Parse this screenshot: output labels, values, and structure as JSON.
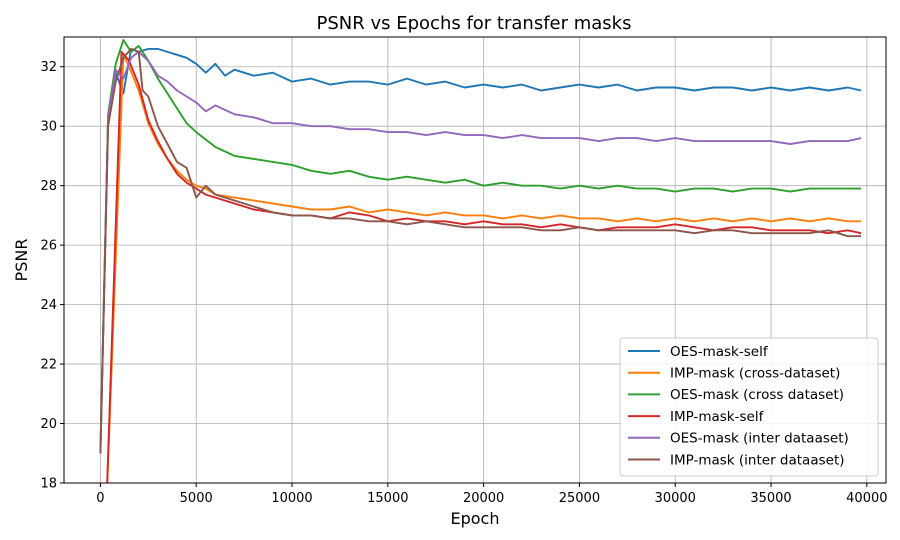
{
  "chart_data": {
    "type": "line",
    "title": "PSNR vs Epochs for transfer masks",
    "xlabel": "Epoch",
    "ylabel": "PSNR",
    "xlim": [
      -1900,
      41000
    ],
    "ylim": [
      18,
      33
    ],
    "xticks": [
      0,
      5000,
      10000,
      15000,
      20000,
      25000,
      30000,
      35000,
      40000
    ],
    "xtick_labels": [
      "0",
      "5000",
      "10000",
      "15000",
      "20000",
      "25000",
      "30000",
      "35000",
      "40000"
    ],
    "yticks": [
      18,
      20,
      22,
      24,
      26,
      28,
      30,
      32
    ],
    "ytick_labels": [
      "18",
      "20",
      "22",
      "24",
      "26",
      "28",
      "30",
      "32"
    ],
    "grid": true,
    "legend_position": "bottom-right",
    "series": [
      {
        "name": "OES-mask-self",
        "color": "#1f77b4",
        "points": [
          [
            0,
            19.1
          ],
          [
            400,
            30.2
          ],
          [
            800,
            31.8
          ],
          [
            1200,
            31.1
          ],
          [
            1600,
            32.6
          ],
          [
            2000,
            32.5
          ],
          [
            2500,
            32.6
          ],
          [
            3000,
            32.6
          ],
          [
            3500,
            32.5
          ],
          [
            4000,
            32.4
          ],
          [
            4500,
            32.3
          ],
          [
            5000,
            32.1
          ],
          [
            5500,
            31.8
          ],
          [
            6000,
            32.1
          ],
          [
            6500,
            31.7
          ],
          [
            7000,
            31.9
          ],
          [
            8000,
            31.7
          ],
          [
            9000,
            31.8
          ],
          [
            10000,
            31.5
          ],
          [
            11000,
            31.6
          ],
          [
            12000,
            31.4
          ],
          [
            13000,
            31.5
          ],
          [
            14000,
            31.5
          ],
          [
            15000,
            31.4
          ],
          [
            16000,
            31.6
          ],
          [
            17000,
            31.4
          ],
          [
            18000,
            31.5
          ],
          [
            19000,
            31.3
          ],
          [
            20000,
            31.4
          ],
          [
            21000,
            31.3
          ],
          [
            22000,
            31.4
          ],
          [
            23000,
            31.2
          ],
          [
            24000,
            31.3
          ],
          [
            25000,
            31.4
          ],
          [
            26000,
            31.3
          ],
          [
            27000,
            31.4
          ],
          [
            28000,
            31.2
          ],
          [
            29000,
            31.3
          ],
          [
            30000,
            31.3
          ],
          [
            31000,
            31.2
          ],
          [
            32000,
            31.3
          ],
          [
            33000,
            31.3
          ],
          [
            34000,
            31.2
          ],
          [
            35000,
            31.3
          ],
          [
            36000,
            31.2
          ],
          [
            37000,
            31.3
          ],
          [
            38000,
            31.2
          ],
          [
            39000,
            31.3
          ],
          [
            39700,
            31.2
          ]
        ]
      },
      {
        "name": "IMP-mask (cross-dataset)",
        "color": "#ff7f0e",
        "points": [
          [
            300,
            17.0
          ],
          [
            1200,
            32.4
          ],
          [
            1500,
            32.0
          ],
          [
            2000,
            31.2
          ],
          [
            2500,
            30.1
          ],
          [
            3000,
            29.4
          ],
          [
            3500,
            28.9
          ],
          [
            4000,
            28.5
          ],
          [
            4500,
            28.2
          ],
          [
            5000,
            28.0
          ],
          [
            5500,
            27.9
          ],
          [
            6000,
            27.7
          ],
          [
            7000,
            27.6
          ],
          [
            8000,
            27.5
          ],
          [
            9000,
            27.4
          ],
          [
            10000,
            27.3
          ],
          [
            11000,
            27.2
          ],
          [
            12000,
            27.2
          ],
          [
            13000,
            27.3
          ],
          [
            14000,
            27.1
          ],
          [
            15000,
            27.2
          ],
          [
            16000,
            27.1
          ],
          [
            17000,
            27.0
          ],
          [
            18000,
            27.1
          ],
          [
            19000,
            27.0
          ],
          [
            20000,
            27.0
          ],
          [
            21000,
            26.9
          ],
          [
            22000,
            27.0
          ],
          [
            23000,
            26.9
          ],
          [
            24000,
            27.0
          ],
          [
            25000,
            26.9
          ],
          [
            26000,
            26.9
          ],
          [
            27000,
            26.8
          ],
          [
            28000,
            26.9
          ],
          [
            29000,
            26.8
          ],
          [
            30000,
            26.9
          ],
          [
            31000,
            26.8
          ],
          [
            32000,
            26.9
          ],
          [
            33000,
            26.8
          ],
          [
            34000,
            26.9
          ],
          [
            35000,
            26.8
          ],
          [
            36000,
            26.9
          ],
          [
            37000,
            26.8
          ],
          [
            38000,
            26.9
          ],
          [
            39000,
            26.8
          ],
          [
            39700,
            26.8
          ]
        ]
      },
      {
        "name": "OES-mask (cross dataset)",
        "color": "#2ca02c",
        "points": [
          [
            0,
            19.0
          ],
          [
            400,
            30.4
          ],
          [
            800,
            32.1
          ],
          [
            1200,
            32.9
          ],
          [
            1600,
            32.5
          ],
          [
            2000,
            32.7
          ],
          [
            2500,
            32.2
          ],
          [
            3000,
            31.6
          ],
          [
            3500,
            31.1
          ],
          [
            4000,
            30.6
          ],
          [
            4500,
            30.1
          ],
          [
            5000,
            29.8
          ],
          [
            6000,
            29.3
          ],
          [
            7000,
            29.0
          ],
          [
            8000,
            28.9
          ],
          [
            9000,
            28.8
          ],
          [
            10000,
            28.7
          ],
          [
            11000,
            28.5
          ],
          [
            12000,
            28.4
          ],
          [
            13000,
            28.5
          ],
          [
            14000,
            28.3
          ],
          [
            15000,
            28.2
          ],
          [
            16000,
            28.3
          ],
          [
            17000,
            28.2
          ],
          [
            18000,
            28.1
          ],
          [
            19000,
            28.2
          ],
          [
            20000,
            28.0
          ],
          [
            21000,
            28.1
          ],
          [
            22000,
            28.0
          ],
          [
            23000,
            28.0
          ],
          [
            24000,
            27.9
          ],
          [
            25000,
            28.0
          ],
          [
            26000,
            27.9
          ],
          [
            27000,
            28.0
          ],
          [
            28000,
            27.9
          ],
          [
            29000,
            27.9
          ],
          [
            30000,
            27.8
          ],
          [
            31000,
            27.9
          ],
          [
            32000,
            27.9
          ],
          [
            33000,
            27.8
          ],
          [
            34000,
            27.9
          ],
          [
            35000,
            27.9
          ],
          [
            36000,
            27.8
          ],
          [
            37000,
            27.9
          ],
          [
            38000,
            27.9
          ],
          [
            39000,
            27.9
          ],
          [
            39700,
            27.9
          ]
        ]
      },
      {
        "name": "IMP-mask-self",
        "color": "#d62728",
        "points": [
          [
            300,
            17.0
          ],
          [
            1100,
            32.5
          ],
          [
            1500,
            32.2
          ],
          [
            2000,
            31.4
          ],
          [
            2500,
            30.2
          ],
          [
            3000,
            29.5
          ],
          [
            3500,
            28.9
          ],
          [
            4000,
            28.4
          ],
          [
            4500,
            28.1
          ],
          [
            5000,
            27.9
          ],
          [
            5500,
            27.7
          ],
          [
            6000,
            27.6
          ],
          [
            7000,
            27.4
          ],
          [
            8000,
            27.2
          ],
          [
            9000,
            27.1
          ],
          [
            10000,
            27.0
          ],
          [
            11000,
            27.0
          ],
          [
            12000,
            26.9
          ],
          [
            13000,
            27.1
          ],
          [
            14000,
            27.0
          ],
          [
            15000,
            26.8
          ],
          [
            16000,
            26.9
          ],
          [
            17000,
            26.8
          ],
          [
            18000,
            26.8
          ],
          [
            19000,
            26.7
          ],
          [
            20000,
            26.8
          ],
          [
            21000,
            26.7
          ],
          [
            22000,
            26.7
          ],
          [
            23000,
            26.6
          ],
          [
            24000,
            26.7
          ],
          [
            25000,
            26.6
          ],
          [
            26000,
            26.5
          ],
          [
            27000,
            26.6
          ],
          [
            28000,
            26.6
          ],
          [
            29000,
            26.6
          ],
          [
            30000,
            26.7
          ],
          [
            31000,
            26.6
          ],
          [
            32000,
            26.5
          ],
          [
            33000,
            26.6
          ],
          [
            34000,
            26.6
          ],
          [
            35000,
            26.5
          ],
          [
            36000,
            26.5
          ],
          [
            37000,
            26.5
          ],
          [
            38000,
            26.4
          ],
          [
            39000,
            26.5
          ],
          [
            39700,
            26.4
          ]
        ]
      },
      {
        "name": "OES-mask (inter dataaset)",
        "color": "#9467bd",
        "points": [
          [
            0,
            19.0
          ],
          [
            400,
            30.3
          ],
          [
            800,
            31.9
          ],
          [
            1200,
            31.6
          ],
          [
            1600,
            32.3
          ],
          [
            2000,
            32.5
          ],
          [
            2500,
            32.2
          ],
          [
            3000,
            31.7
          ],
          [
            3500,
            31.5
          ],
          [
            4000,
            31.2
          ],
          [
            4500,
            31.0
          ],
          [
            5000,
            30.8
          ],
          [
            5500,
            30.5
          ],
          [
            6000,
            30.7
          ],
          [
            7000,
            30.4
          ],
          [
            8000,
            30.3
          ],
          [
            9000,
            30.1
          ],
          [
            10000,
            30.1
          ],
          [
            11000,
            30.0
          ],
          [
            12000,
            30.0
          ],
          [
            13000,
            29.9
          ],
          [
            14000,
            29.9
          ],
          [
            15000,
            29.8
          ],
          [
            16000,
            29.8
          ],
          [
            17000,
            29.7
          ],
          [
            18000,
            29.8
          ],
          [
            19000,
            29.7
          ],
          [
            20000,
            29.7
          ],
          [
            21000,
            29.6
          ],
          [
            22000,
            29.7
          ],
          [
            23000,
            29.6
          ],
          [
            24000,
            29.6
          ],
          [
            25000,
            29.6
          ],
          [
            26000,
            29.5
          ],
          [
            27000,
            29.6
          ],
          [
            28000,
            29.6
          ],
          [
            29000,
            29.5
          ],
          [
            30000,
            29.6
          ],
          [
            31000,
            29.5
          ],
          [
            32000,
            29.5
          ],
          [
            33000,
            29.5
          ],
          [
            34000,
            29.5
          ],
          [
            35000,
            29.5
          ],
          [
            36000,
            29.4
          ],
          [
            37000,
            29.5
          ],
          [
            38000,
            29.5
          ],
          [
            39000,
            29.5
          ],
          [
            39700,
            29.6
          ]
        ]
      },
      {
        "name": "IMP-mask (inter dataaset)",
        "color": "#8c564b",
        "points": [
          [
            0,
            19.0
          ],
          [
            400,
            30.0
          ],
          [
            800,
            31.5
          ],
          [
            1200,
            32.3
          ],
          [
            1600,
            32.6
          ],
          [
            2000,
            32.5
          ],
          [
            2200,
            31.2
          ],
          [
            2500,
            31.0
          ],
          [
            3000,
            30.0
          ],
          [
            3500,
            29.4
          ],
          [
            4000,
            28.8
          ],
          [
            4500,
            28.6
          ],
          [
            5000,
            27.6
          ],
          [
            5500,
            28.0
          ],
          [
            6000,
            27.7
          ],
          [
            7000,
            27.5
          ],
          [
            8000,
            27.3
          ],
          [
            9000,
            27.1
          ],
          [
            10000,
            27.0
          ],
          [
            11000,
            27.0
          ],
          [
            12000,
            26.9
          ],
          [
            13000,
            26.9
          ],
          [
            14000,
            26.8
          ],
          [
            15000,
            26.8
          ],
          [
            16000,
            26.7
          ],
          [
            17000,
            26.8
          ],
          [
            18000,
            26.7
          ],
          [
            19000,
            26.6
          ],
          [
            20000,
            26.6
          ],
          [
            21000,
            26.6
          ],
          [
            22000,
            26.6
          ],
          [
            23000,
            26.5
          ],
          [
            24000,
            26.5
          ],
          [
            25000,
            26.6
          ],
          [
            26000,
            26.5
          ],
          [
            27000,
            26.5
          ],
          [
            28000,
            26.5
          ],
          [
            29000,
            26.5
          ],
          [
            30000,
            26.5
          ],
          [
            31000,
            26.4
          ],
          [
            32000,
            26.5
          ],
          [
            33000,
            26.5
          ],
          [
            34000,
            26.4
          ],
          [
            35000,
            26.4
          ],
          [
            36000,
            26.4
          ],
          [
            37000,
            26.4
          ],
          [
            38000,
            26.5
          ],
          [
            39000,
            26.3
          ],
          [
            39700,
            26.3
          ]
        ]
      }
    ]
  }
}
